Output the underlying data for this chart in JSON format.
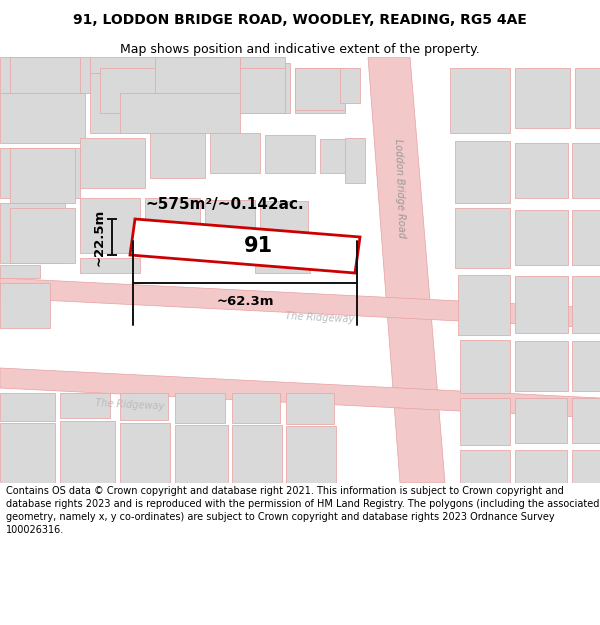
{
  "title": "91, LODDON BRIDGE ROAD, WOODLEY, READING, RG5 4AE",
  "subtitle": "Map shows position and indicative extent of the property.",
  "footer": "Contains OS data © Crown copyright and database right 2021. This information is subject to Crown copyright and database rights 2023 and is reproduced with the permission of HM Land Registry. The polygons (including the associated geometry, namely x, y co-ordinates) are subject to Crown copyright and database rights 2023 Ordnance Survey 100026316.",
  "map_bg": "#f9f9f9",
  "road_fill": "#f2c8c8",
  "road_edge": "#e8a0a0",
  "bld_fill": "#d9d9d9",
  "bld_edge": "#e8aaaa",
  "highlight": "#cc0000",
  "dim_color": "#111111",
  "label_91": "91",
  "area_label": "~575m²/~0.142ac.",
  "dim_w": "~62.3m",
  "dim_h": "~22.5m",
  "lbl_loddon": "Loddon Bridge Road",
  "lbl_ridgeway1": "The Ridgeway",
  "lbl_ridgeway2": "The Ridgeway",
  "title_fontsize": 10,
  "subtitle_fontsize": 9,
  "footer_fontsize": 7
}
